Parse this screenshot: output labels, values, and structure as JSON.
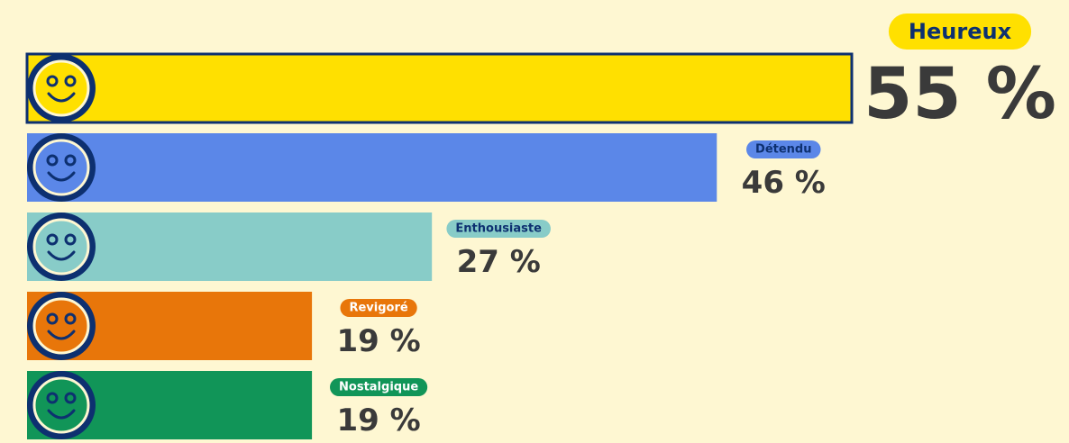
{
  "chart_data": {
    "type": "bar",
    "orientation": "horizontal",
    "categories": [
      "Heureux",
      "Détendu",
      "Enthousiaste",
      "Revigoré",
      "Nostalgique"
    ],
    "values": [
      55,
      46,
      27,
      19,
      19
    ],
    "value_labels": [
      "55 %",
      "46 %",
      "27 %",
      "19 %",
      "19 %"
    ],
    "colors": [
      "#ffe000",
      "#5b87e8",
      "#88ccc8",
      "#e8760a",
      "#119558"
    ]
  }
}
